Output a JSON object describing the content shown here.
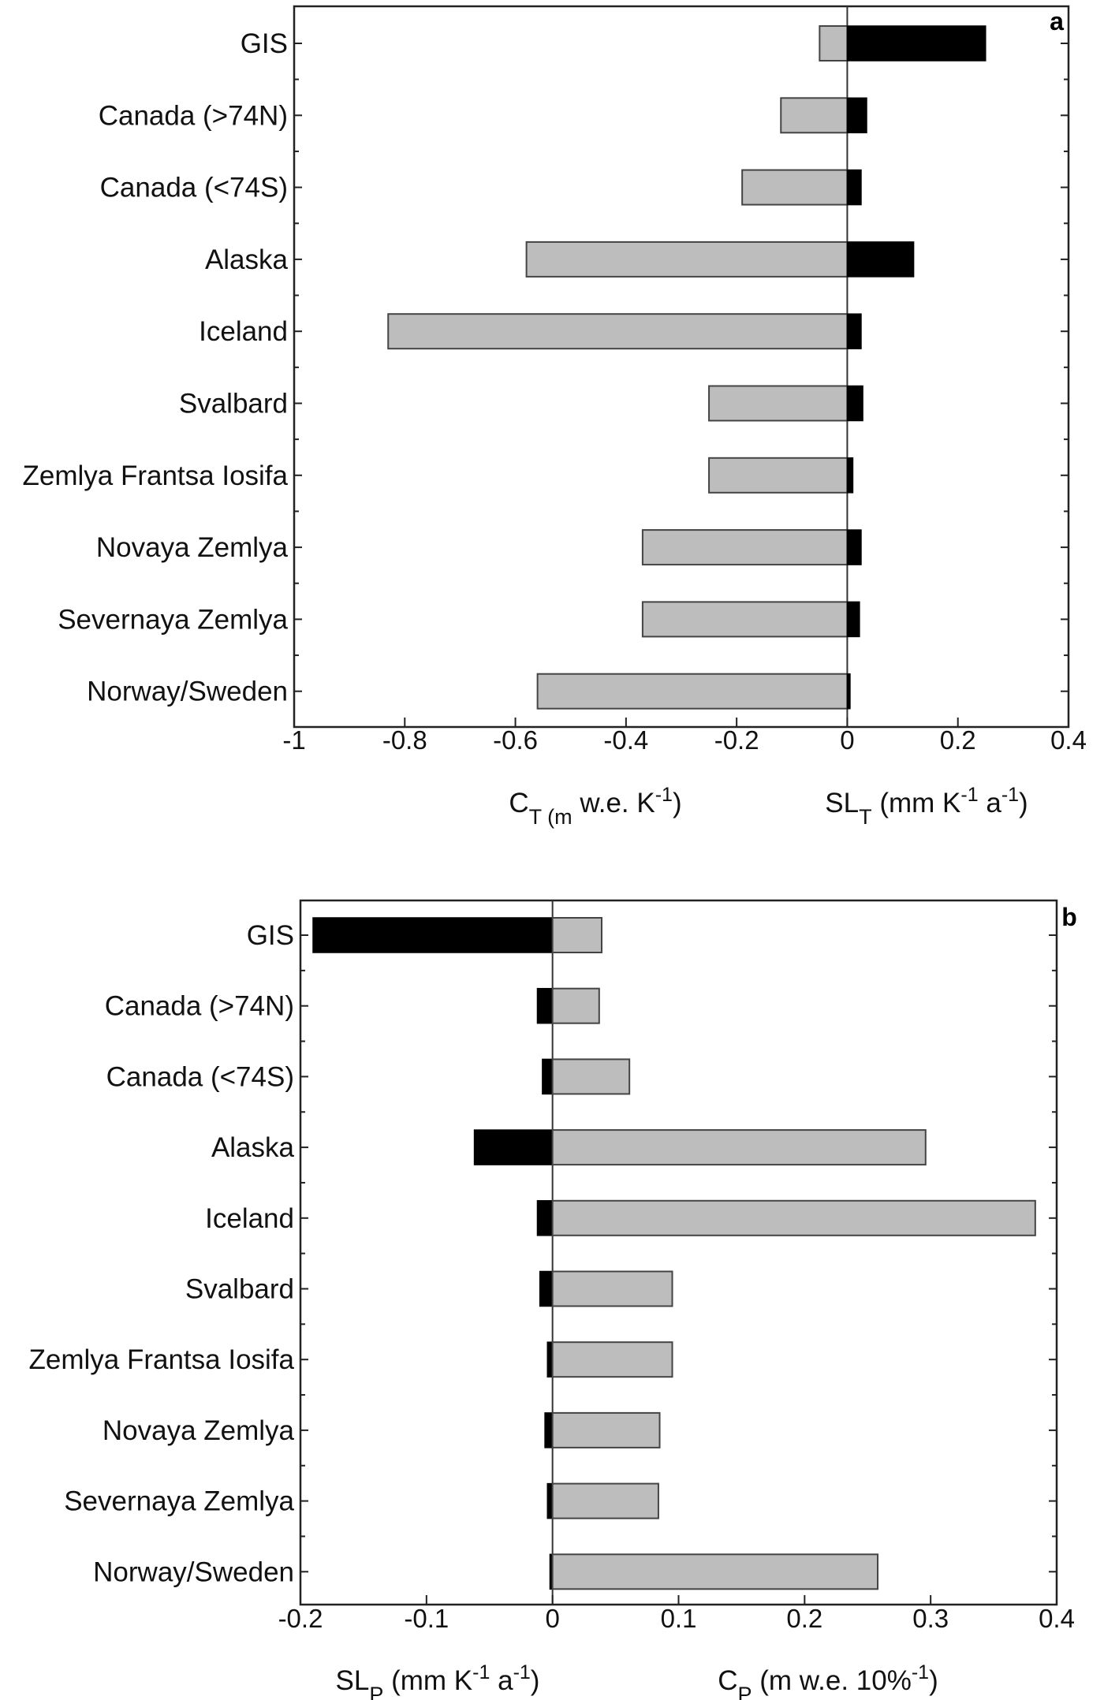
{
  "chart_data": [
    {
      "type": "bar",
      "panel": "a",
      "orientation": "horizontal",
      "categories": [
        "GIS",
        "Canada (>74N)",
        "Canada (<74S)",
        "Alaska",
        "Iceland",
        "Svalbard",
        "Zemlya Frantsa Iosifa",
        "Novaya Zemlya",
        "Severnaya Zemlya",
        "Norway/Sweden"
      ],
      "series": [
        {
          "values": [
            -0.05,
            -0.12,
            -0.19,
            -0.58,
            -0.83,
            -0.25,
            -0.25,
            -0.37,
            -0.37,
            -0.56
          ],
          "color": "#bdbdbd"
        },
        {
          "values": [
            0.25,
            0.035,
            0.025,
            0.12,
            0.025,
            0.028,
            0.01,
            0.025,
            0.022,
            0.005
          ],
          "color": "#000000"
        }
      ],
      "xlim": [
        -1,
        0.4
      ],
      "xticks": [
        "-1",
        "-0.8",
        "-0.6",
        "-0.4",
        "-0.2",
        "0",
        "0.2",
        "0.4"
      ],
      "xlabel_left": {
        "main": "C",
        "sub": "T (m",
        "rest": " w.e. K",
        "sup": "-1",
        "end": ")"
      },
      "xlabel_right": {
        "main": "SL",
        "sub": "T",
        "rest": " (mm K",
        "sup1": "-1",
        "mid": " a",
        "sup2": "-1",
        "end": ")"
      }
    },
    {
      "type": "bar",
      "panel": "b",
      "orientation": "horizontal",
      "categories": [
        "GIS",
        "Canada (>74N)",
        "Canada (<74S)",
        "Alaska",
        "Iceland",
        "Svalbard",
        "Zemlya Frantsa Iosifa",
        "Novaya Zemlya",
        "Severnaya Zemlya",
        "Norway/Sweden"
      ],
      "series": [
        {
          "values": [
            -0.19,
            -0.012,
            -0.008,
            -0.062,
            -0.012,
            -0.01,
            -0.004,
            -0.006,
            -0.004,
            -0.002
          ],
          "color": "#000000"
        },
        {
          "values": [
            0.039,
            0.037,
            0.061,
            0.296,
            0.383,
            0.095,
            0.095,
            0.085,
            0.084,
            0.258
          ],
          "color": "#bdbdbd"
        }
      ],
      "xlim": [
        -0.2,
        0.4
      ],
      "xticks": [
        "-0.2",
        "-0.1",
        "0",
        "0.1",
        "0.2",
        "0.3",
        "0.4"
      ],
      "xlabel_left": {
        "main": "SL",
        "sub": "P",
        "rest": " (mm K",
        "sup1": "-1",
        "mid": " a",
        "sup2": "-1",
        "end": ")"
      },
      "xlabel_right": {
        "main": "C",
        "sub": "P",
        "rest": " (m w.e. 10%",
        "sup": "-1",
        "end": ")"
      }
    }
  ]
}
